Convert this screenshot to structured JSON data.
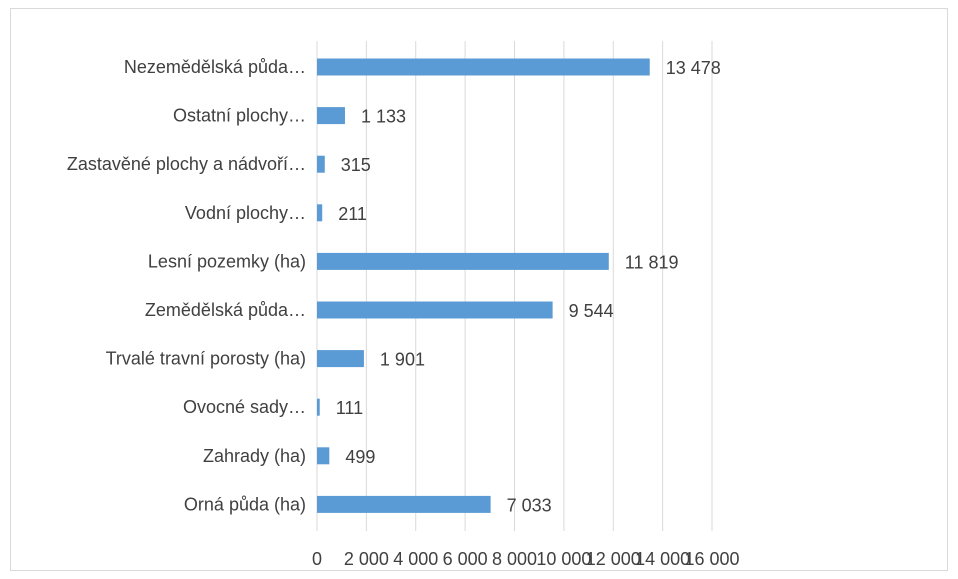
{
  "chart_data": {
    "type": "bar",
    "orientation": "horizontal",
    "categories": [
      "Nezemědělská půda…",
      "Ostatní plochy…",
      "Zastavěné plochy a nádvoří…",
      "Vodní plochy…",
      "Lesní pozemky (ha)",
      "Zemědělská půda…",
      "Trvalé travní porosty (ha)",
      "Ovocné sady…",
      "Zahrady (ha)",
      "Orná půda (ha)"
    ],
    "values": [
      13478,
      1133,
      315,
      211,
      11819,
      9544,
      1901,
      111,
      499,
      7033
    ],
    "data_labels": [
      "13 478",
      "1 133",
      "315",
      "211",
      "11 819",
      "9 544",
      "1 901",
      "111",
      "499",
      "7 033"
    ],
    "xlim": [
      0,
      16000
    ],
    "x_ticks": [
      0,
      2000,
      4000,
      6000,
      8000,
      10000,
      12000,
      14000,
      16000
    ],
    "x_tick_labels": [
      "0",
      "2 000",
      "4 000",
      "6 000",
      "8 000",
      "10 000",
      "12 000",
      "14 000",
      "16 000"
    ],
    "grid": "vertical",
    "legend": "none",
    "bar_color": "#5b9bd5",
    "grid_color": "#d9d9d9"
  }
}
